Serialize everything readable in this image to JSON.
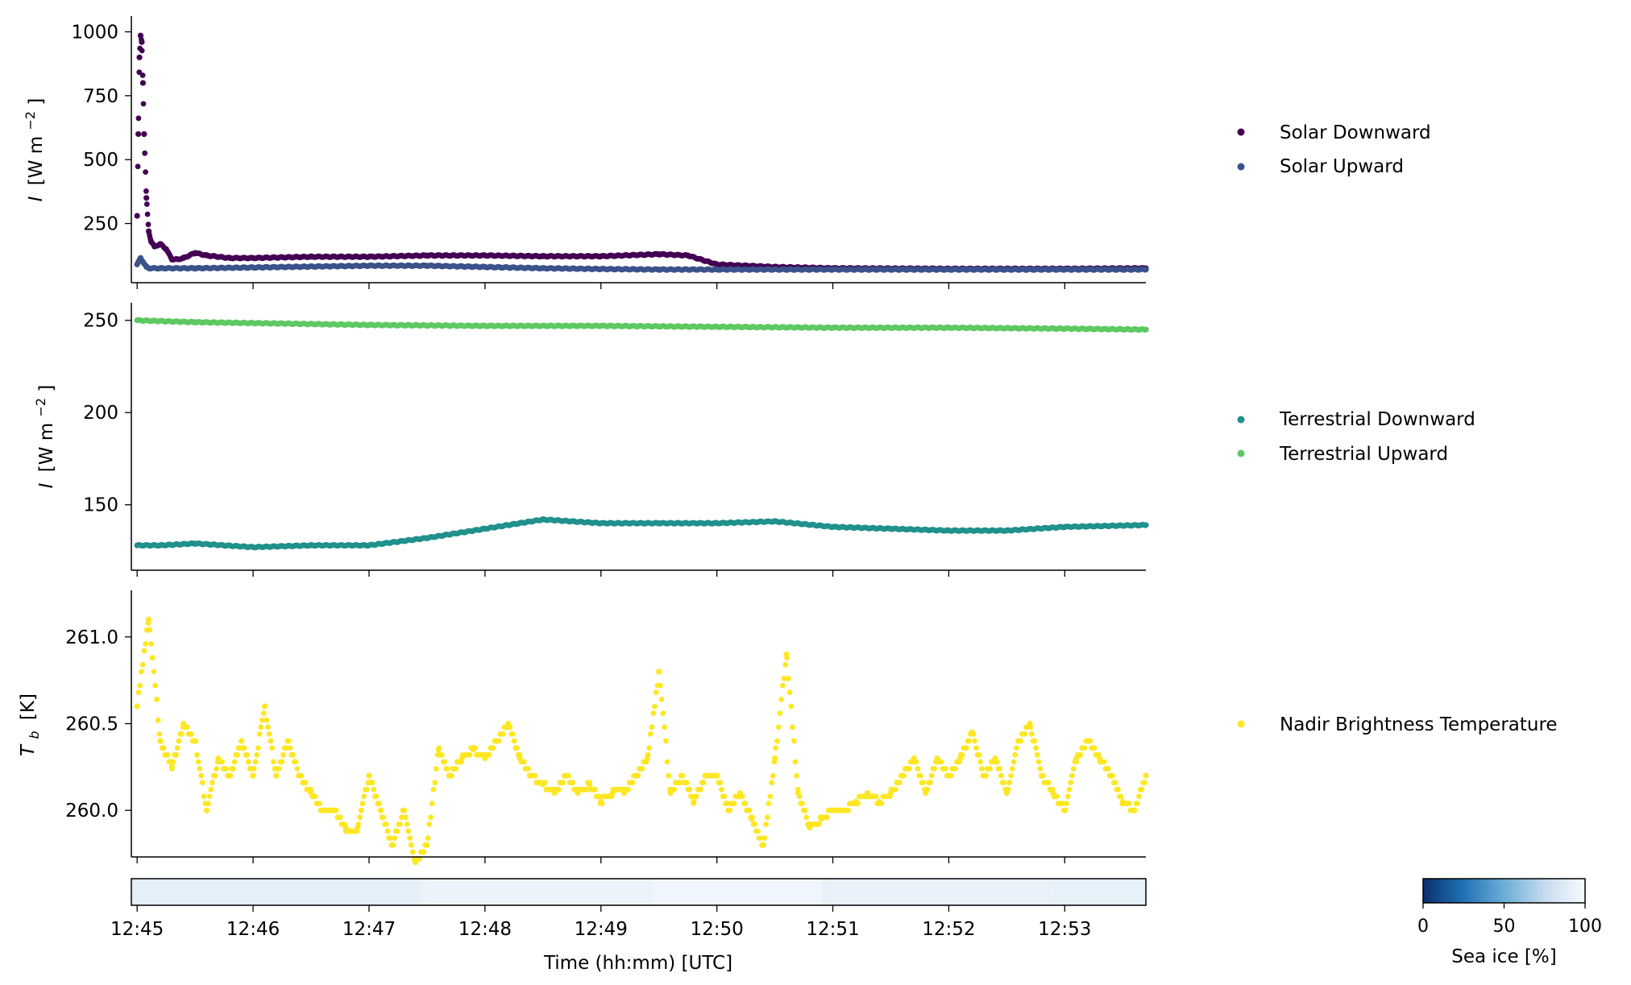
{
  "figure": {
    "xlabel": "Time (hh:mm) [UTC]",
    "x_ticks": [
      "12:45",
      "12:46",
      "12:47",
      "12:48",
      "12:49",
      "12:50",
      "12:51",
      "12:52",
      "12:53"
    ],
    "colorbar": {
      "label": "Sea ice [%]",
      "ticks": [
        "0",
        "50",
        "100"
      ],
      "colormap": "Blues_r"
    }
  },
  "chart_data": [
    {
      "type": "scatter",
      "ylabel_main": "I",
      "ylabel_unit": "[W m",
      "ylabel_exp": "−2",
      "ylabel_close": "]",
      "yticks": [
        250,
        500,
        750,
        1000
      ],
      "ylim": [
        50,
        1030
      ],
      "xlim_minutes": [
        -0.05,
        8.7
      ],
      "legend": [
        "Solar Downward",
        "Solar Upward"
      ],
      "series": [
        {
          "name": "Solar Downward",
          "color": "#440154",
          "x": [
            0.0,
            0.01,
            0.02,
            0.03,
            0.04,
            0.05,
            0.06,
            0.08,
            0.1,
            0.12,
            0.15,
            0.2,
            0.25,
            0.3,
            0.35,
            0.4,
            0.5,
            0.6,
            0.8,
            1.0,
            1.5,
            2.0,
            2.5,
            3.0,
            3.5,
            4.0,
            4.5,
            4.75,
            5.0,
            5.5,
            6.0,
            7.0,
            8.0,
            8.7
          ],
          "y": [
            280,
            600,
            900,
            985,
            960,
            800,
            600,
            350,
            220,
            180,
            160,
            170,
            150,
            110,
            110,
            115,
            135,
            125,
            115,
            115,
            120,
            120,
            125,
            125,
            122,
            122,
            130,
            125,
            90,
            80,
            75,
            73,
            73,
            75
          ]
        },
        {
          "name": "Solar Upward",
          "color": "#3b528b",
          "x": [
            0.0,
            0.03,
            0.05,
            0.08,
            0.1,
            0.2,
            0.5,
            1.0,
            2.0,
            2.5,
            3.0,
            3.5,
            4.0,
            4.5,
            5.0,
            6.0,
            7.0,
            8.0,
            8.7
          ],
          "y": [
            90,
            115,
            100,
            80,
            75,
            75,
            75,
            78,
            85,
            85,
            80,
            75,
            72,
            70,
            70,
            70,
            70,
            70,
            70
          ]
        }
      ]
    },
    {
      "type": "scatter",
      "ylabel_main": "I",
      "ylabel_unit": "[W m",
      "ylabel_exp": "−2",
      "ylabel_close": "]",
      "yticks": [
        150,
        200,
        250
      ],
      "ylim": [
        118,
        256
      ],
      "xlim_minutes": [
        -0.05,
        8.7
      ],
      "legend": [
        "Terrestrial Downward",
        "Terrestrial Upward"
      ],
      "series": [
        {
          "name": "Terrestrial Downward",
          "color": "#21918c",
          "x": [
            0.0,
            0.2,
            0.5,
            1.0,
            1.5,
            2.0,
            2.5,
            3.0,
            3.5,
            4.0,
            4.5,
            5.0,
            5.5,
            6.0,
            6.5,
            7.0,
            7.5,
            8.0,
            8.7
          ],
          "y": [
            128,
            128,
            129,
            127,
            128,
            128,
            132,
            137,
            142,
            140,
            140,
            140,
            141,
            138,
            137,
            136,
            136,
            138,
            139
          ]
        },
        {
          "name": "Terrestrial Upward",
          "color": "#5ec962",
          "x": [
            0.0,
            0.5,
            1.0,
            2.0,
            3.0,
            4.0,
            5.0,
            6.0,
            7.0,
            8.0,
            8.7
          ],
          "y": [
            250,
            249,
            248.5,
            247.5,
            247,
            247,
            246.5,
            246,
            246,
            245.5,
            245
          ]
        }
      ]
    },
    {
      "type": "scatter",
      "ylabel_main": "T",
      "ylabel_sub": "b",
      "ylabel_unit": "[K]",
      "yticks": [
        "260.0",
        "260.5",
        "261.0"
      ],
      "ylim": [
        259.75,
        261.25
      ],
      "xlim_minutes": [
        -0.05,
        8.7
      ],
      "legend": [
        "Nadir Brightness Temperature"
      ],
      "series": [
        {
          "name": "Nadir Brightness Temperature",
          "color": "#fde725",
          "x": [
            0.0,
            0.1,
            0.2,
            0.3,
            0.4,
            0.5,
            0.6,
            0.7,
            0.8,
            0.9,
            1.0,
            1.1,
            1.2,
            1.3,
            1.4,
            1.5,
            1.6,
            1.7,
            1.8,
            1.9,
            2.0,
            2.1,
            2.2,
            2.3,
            2.4,
            2.5,
            2.6,
            2.7,
            2.8,
            2.9,
            3.0,
            3.1,
            3.2,
            3.3,
            3.4,
            3.5,
            3.6,
            3.7,
            3.8,
            3.9,
            4.0,
            4.1,
            4.2,
            4.3,
            4.4,
            4.5,
            4.6,
            4.7,
            4.8,
            4.9,
            5.0,
            5.1,
            5.2,
            5.3,
            5.4,
            5.5,
            5.6,
            5.7,
            5.8,
            5.9,
            6.0,
            6.1,
            6.2,
            6.3,
            6.4,
            6.5,
            6.6,
            6.7,
            6.8,
            6.9,
            7.0,
            7.1,
            7.2,
            7.3,
            7.4,
            7.5,
            7.6,
            7.7,
            7.8,
            7.9,
            8.0,
            8.1,
            8.2,
            8.3,
            8.4,
            8.5,
            8.6,
            8.7
          ],
          "y": [
            260.6,
            261.1,
            260.4,
            260.25,
            260.5,
            260.4,
            260.0,
            260.3,
            260.2,
            260.4,
            260.2,
            260.6,
            260.2,
            260.4,
            260.2,
            260.1,
            260.0,
            260.0,
            259.9,
            259.9,
            260.2,
            260.0,
            259.8,
            260.0,
            259.7,
            259.8,
            260.35,
            260.2,
            260.3,
            260.35,
            260.3,
            260.4,
            260.5,
            260.3,
            260.2,
            260.15,
            260.1,
            260.2,
            260.1,
            260.15,
            260.05,
            260.1,
            260.1,
            260.2,
            260.3,
            260.8,
            260.1,
            260.2,
            260.05,
            260.2,
            260.2,
            260.0,
            260.1,
            259.95,
            259.8,
            260.3,
            260.9,
            260.1,
            259.9,
            259.95,
            260.0,
            260.0,
            260.05,
            260.1,
            260.05,
            260.1,
            260.2,
            260.3,
            260.1,
            260.3,
            260.2,
            260.3,
            260.45,
            260.2,
            260.3,
            260.1,
            260.4,
            260.5,
            260.2,
            260.1,
            260.0,
            260.3,
            260.4,
            260.3,
            260.2,
            260.05,
            260.0,
            260.2
          ]
        }
      ]
    },
    {
      "type": "heatmap",
      "name": "Sea ice strip",
      "x_edges": [
        -0.05,
        2.45,
        4.45,
        5.9,
        7.9,
        8.7
      ],
      "values": [
        91,
        94,
        96,
        93,
        92
      ]
    }
  ]
}
